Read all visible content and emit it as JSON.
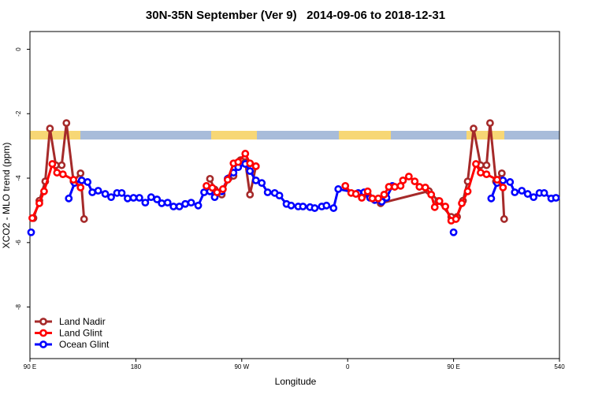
{
  "chart_data": {
    "type": "line",
    "title": "30N-35N September (Ver 9)   2014-09-06 to 2018-12-31",
    "x_label": "Longitude",
    "y_label": "XCO2 - MLO trend (ppm)",
    "xlim": [
      90,
      540
    ],
    "ylim": [
      -9.6,
      0.55
    ],
    "xticks": [
      {
        "value": 90,
        "label": "90 E"
      },
      180,
      {
        "value": 270,
        "label": "90 W"
      },
      {
        "value": 360,
        "label": "0"
      },
      {
        "value": 450,
        "label": "90 E"
      },
      540
    ],
    "yticks": [
      0,
      -2,
      -4,
      -6,
      -8
    ],
    "legend": "bottom-left",
    "series": [
      {
        "name": "Land Nadir",
        "color": "#a52a2a",
        "x": [
          93,
          98,
          103,
          107,
          112,
          117,
          121,
          127,
          133,
          136,
          200,
          243,
          247,
          253,
          259,
          263,
          269,
          273,
          277,
          282,
          330,
          377,
          388,
          429,
          437,
          448,
          453,
          458,
          462,
          467,
          473,
          478,
          481,
          486,
          491,
          493
        ],
        "values": [
          -5.24,
          -4.7,
          -4.1,
          -2.46,
          -3.6,
          -3.6,
          -2.29,
          -4.1,
          -3.85,
          -5.27,
          null,
          -4.02,
          -4.35,
          -4.51,
          -4.0,
          -3.93,
          -3.44,
          -3.5,
          -4.51,
          -3.63,
          null,
          -4.5,
          -4.78,
          -4.4,
          -4.71,
          -5.2,
          -5.2,
          -4.7,
          -4.1,
          -2.46,
          -3.6,
          -3.6,
          -2.29,
          -4.1,
          -3.85,
          -5.27
        ]
      },
      {
        "name": "Ocean Glint",
        "color": "#0000ff",
        "x": [
          91,
          100,
          123,
          128,
          134,
          139,
          143,
          148,
          154,
          159,
          164,
          168,
          173,
          178,
          183,
          188,
          193,
          198,
          202,
          207,
          212,
          217,
          222,
          227,
          233,
          238,
          243,
          247,
          253,
          258,
          263,
          267,
          273,
          277,
          282,
          287,
          292,
          298,
          302,
          308,
          312,
          318,
          322,
          328,
          332,
          338,
          342,
          348,
          352,
          369,
          374,
          379,
          383,
          389,
          393,
          398,
          420,
          450,
          470,
          482,
          487,
          492,
          498,
          502,
          508,
          513,
          518,
          523,
          527,
          533,
          537
        ],
        "values": [
          -5.68,
          null,
          -4.63,
          -4.15,
          -4.07,
          -4.12,
          -4.44,
          -4.39,
          -4.49,
          -4.59,
          -4.46,
          -4.46,
          -4.63,
          -4.61,
          -4.61,
          -4.76,
          -4.59,
          -4.66,
          -4.78,
          -4.76,
          -4.88,
          -4.88,
          -4.8,
          -4.76,
          -4.85,
          -4.44,
          -4.41,
          -4.59,
          -4.41,
          -4.02,
          -3.83,
          -3.66,
          -3.56,
          -3.78,
          -4.07,
          -4.15,
          -4.44,
          -4.46,
          -4.54,
          -4.8,
          -4.85,
          -4.88,
          -4.88,
          -4.9,
          -4.93,
          -4.88,
          -4.85,
          -4.93,
          -4.34,
          -4.46,
          -4.44,
          -4.61,
          -4.68,
          -4.73,
          -4.61,
          -4.24,
          null,
          -5.68,
          null,
          -4.63,
          -4.15,
          -4.07,
          -4.12,
          -4.44,
          -4.39,
          -4.49,
          -4.59,
          -4.46,
          -4.46,
          -4.63,
          -4.61
        ]
      },
      {
        "name": "Land Glint",
        "color": "#ff0000",
        "x": [
          92,
          98,
          102,
          109,
          113,
          118,
          127,
          133,
          200,
          240,
          245,
          249,
          254,
          258,
          263,
          267,
          273,
          277,
          282,
          330,
          358,
          363,
          367,
          372,
          377,
          381,
          386,
          391,
          395,
          400,
          405,
          407,
          412,
          417,
          421,
          426,
          431,
          434,
          438,
          443,
          448,
          452,
          457,
          462,
          469,
          473,
          478,
          487,
          492
        ],
        "values": [
          -5.24,
          -4.78,
          -4.41,
          -3.56,
          -3.83,
          -3.88,
          -4.05,
          -4.29,
          null,
          -4.24,
          -4.3,
          -4.44,
          -4.34,
          -4.05,
          -3.54,
          -3.5,
          -3.24,
          -3.54,
          -3.63,
          null,
          -4.24,
          -4.46,
          -4.49,
          -4.61,
          -4.41,
          -4.63,
          -4.63,
          -4.51,
          -4.27,
          -4.27,
          -4.24,
          -4.07,
          -3.95,
          -4.1,
          -4.27,
          -4.29,
          -4.51,
          -4.9,
          -4.71,
          -4.88,
          -5.32,
          -5.27,
          -4.78,
          -4.41,
          -3.56,
          -3.83,
          -3.88,
          -4.05,
          -4.29
        ]
      }
    ]
  }
}
